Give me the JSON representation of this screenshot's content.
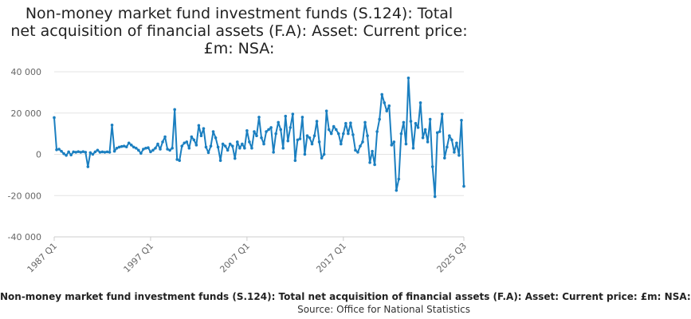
{
  "title_lines": [
    "Non-money market fund investment funds (S.124): Total",
    "net acquisition of financial assets (F.A): Asset: Current price:",
    "£m: NSA:"
  ],
  "footer": {
    "legend_text": "Non-money market fund investment funds (S.124): Total net acquisition of financial assets (F.A): Asset: Current price: £m: NSA:",
    "source_text": "Source: Office for National Statistics"
  },
  "colors": {
    "series": "#1b7fc0",
    "grid": "#e3e3e3",
    "axis": "#666666"
  },
  "chart_data": {
    "type": "line",
    "title": "Non-money market fund investment funds (S.124): Total net acquisition of financial assets (F.A): Asset: Current price: £m: NSA:",
    "xlabel": "",
    "ylabel": "",
    "x_ticks": [
      "1987 Q1",
      "1997 Q1",
      "2007 Q1",
      "2017 Q1",
      "2025 Q3"
    ],
    "y_ticks": [
      "40 000",
      "20 000",
      "0",
      "-20 000",
      "-40 000"
    ],
    "ylim": [
      -40000,
      40000
    ],
    "grid": true,
    "markers": true,
    "series": [
      {
        "name": "Non-money market fund investment funds (S.124): Total net acquisition of financial assets (F.A): Asset: Current price: £m: NSA:",
        "values": [
          17800,
          2200,
          2500,
          1500,
          300,
          -500,
          1200,
          -300,
          1200,
          1000,
          1300,
          1000,
          1300,
          1000,
          -6000,
          800,
          0,
          1200,
          2000,
          1000,
          1200,
          1000,
          1200,
          1000,
          14200,
          1500,
          3000,
          3500,
          3800,
          4000,
          3600,
          5500,
          4500,
          3500,
          3000,
          2000,
          500,
          2500,
          3000,
          3200,
          1200,
          2000,
          3000,
          5000,
          2500,
          6000,
          8500,
          2500,
          2000,
          3000,
          21700,
          -2500,
          -3000,
          4000,
          5500,
          6000,
          3000,
          8500,
          7000,
          4500,
          14000,
          9000,
          12500,
          3500,
          800,
          4000,
          11000,
          8000,
          3500,
          -3000,
          5000,
          4000,
          2000,
          5000,
          4000,
          -2000,
          6000,
          3000,
          5000,
          3000,
          11500,
          6000,
          3000,
          11000,
          9000,
          18000,
          8000,
          5000,
          11000,
          12000,
          13000,
          1000,
          10000,
          15500,
          12000,
          3000,
          18500,
          6500,
          13000,
          19500,
          -3000,
          7000,
          7500,
          18000,
          0,
          9000,
          8000,
          5000,
          9000,
          16000,
          6000,
          -1800,
          0,
          21000,
          12000,
          10000,
          13500,
          12000,
          10000,
          5000,
          10000,
          15000,
          10000,
          15200,
          9500,
          2000,
          1000,
          4000,
          6000,
          15500,
          9000,
          -4000,
          1500,
          -5000,
          11000,
          17000,
          29000,
          25000,
          21000,
          23500,
          4500,
          6000,
          -17500,
          -12000,
          10000,
          15500,
          5000,
          37000,
          16000,
          3000,
          15000,
          13000,
          25000,
          8000,
          12000,
          6000,
          17000,
          -6000,
          -20500,
          10500,
          11000,
          19500,
          -1800,
          3500,
          9000,
          7000,
          1000,
          5500,
          -500,
          16500,
          -15500
        ]
      }
    ]
  }
}
